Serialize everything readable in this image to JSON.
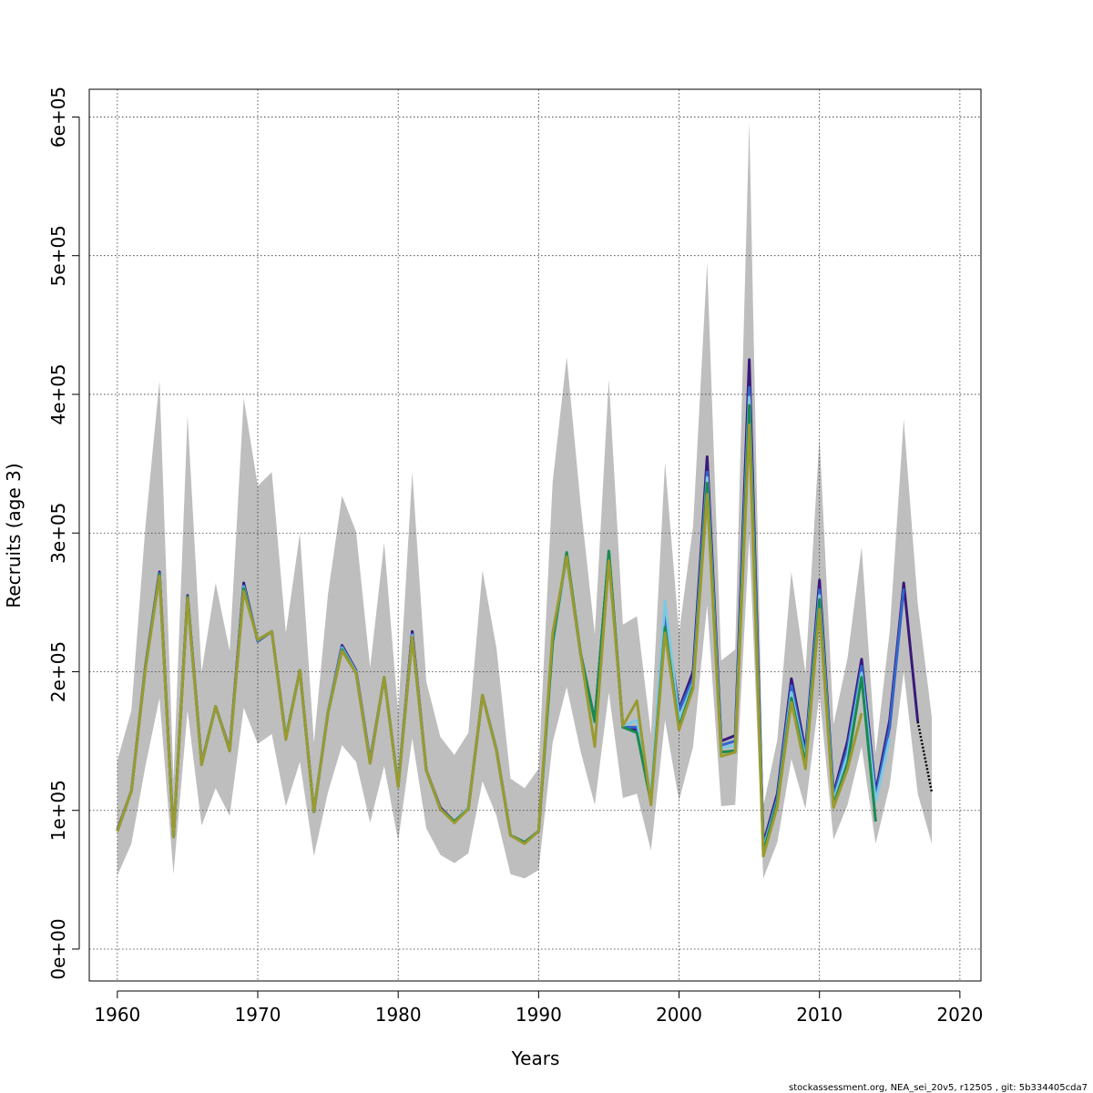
{
  "chart_data": {
    "type": "line",
    "xlabel": "Years",
    "ylabel": "Recruits (age 3)",
    "xlim": [
      1958,
      2021.5
    ],
    "ylim": [
      -23000,
      620000
    ],
    "xticks": [
      1960,
      1970,
      1980,
      1990,
      2000,
      2010,
      2020
    ],
    "yticks": [
      0,
      100000,
      200000,
      300000,
      400000,
      500000,
      600000
    ],
    "ytick_labels": [
      "0e+00",
      "1e+05",
      "2e+05",
      "3e+05",
      "4e+05",
      "5e+05",
      "6e+05"
    ],
    "grid": true,
    "footnote": "stockassessment.org, NEA_sei_20v5, r12505 , git: 5b334405cda7",
    "confidence_band": {
      "color": "#bebebe",
      "x": [
        1960,
        1961,
        1962,
        1963,
        1964,
        1965,
        1966,
        1967,
        1968,
        1969,
        1970,
        1971,
        1972,
        1973,
        1974,
        1975,
        1976,
        1977,
        1978,
        1979,
        1980,
        1981,
        1982,
        1983,
        1984,
        1985,
        1986,
        1987,
        1988,
        1989,
        1990,
        1991,
        1992,
        1993,
        1994,
        1995,
        1996,
        1997,
        1998,
        1999,
        2000,
        2001,
        2002,
        2003,
        2004,
        2005,
        2006,
        2007,
        2008,
        2009,
        2010,
        2011,
        2012,
        2013,
        2014,
        2015,
        2016,
        2017,
        2018
      ],
      "upper": [
        136000,
        172000,
        305000,
        410000,
        122000,
        385000,
        200000,
        264000,
        215000,
        397000,
        334000,
        344000,
        228000,
        300000,
        149000,
        256000,
        327000,
        301000,
        203000,
        293000,
        170000,
        344000,
        193000,
        153000,
        140000,
        156000,
        273000,
        217000,
        123000,
        116000,
        130000,
        337000,
        427000,
        320000,
        227000,
        411000,
        234000,
        240000,
        155000,
        351000,
        228000,
        305000,
        495000,
        208000,
        216000,
        597000,
        103000,
        151000,
        272000,
        199000,
        369000,
        162000,
        210000,
        290000,
        141000,
        229000,
        382000,
        249000,
        167000
      ],
      "lower": [
        53000,
        76000,
        132000,
        181000,
        54000,
        172000,
        89000,
        116000,
        96000,
        174000,
        148000,
        155000,
        103000,
        135000,
        67000,
        113000,
        147000,
        135000,
        91000,
        132000,
        78000,
        152000,
        87000,
        68000,
        62000,
        69000,
        121000,
        96000,
        54000,
        51000,
        57000,
        149000,
        189000,
        142000,
        104000,
        185000,
        109000,
        112000,
        71000,
        165000,
        107000,
        146000,
        248000,
        103000,
        104000,
        297000,
        51000,
        77000,
        137000,
        101000,
        184000,
        79000,
        104000,
        146000,
        76000,
        118000,
        200000,
        112000,
        76000
      ]
    },
    "series": [
      {
        "color": "#39197a",
        "x": [
          1960,
          1961,
          1962,
          1963,
          1964,
          1965,
          1966,
          1967,
          1968,
          1969,
          1970,
          1971,
          1972,
          1973,
          1974,
          1975,
          1976,
          1977,
          1978,
          1979,
          1980,
          1981,
          1982,
          1983,
          1984,
          1985,
          1986,
          1987,
          1988,
          1989,
          1990,
          1991,
          1992,
          1993,
          1994,
          1995,
          1996,
          1997,
          1998,
          1999,
          2000,
          2001,
          2002,
          2003,
          2004,
          2005,
          2006,
          2007,
          2008,
          2009,
          2010,
          2011,
          2012,
          2013,
          2014,
          2015,
          2016,
          2017
        ],
        "values": [
          86000,
          114000,
          204000,
          272000,
          81000,
          255000,
          134000,
          175000,
          144000,
          264000,
          222000,
          229000,
          152000,
          201000,
          99000,
          171000,
          219000,
          201000,
          136000,
          196000,
          118000,
          229000,
          129000,
          102000,
          92000,
          102000,
          183000,
          144000,
          82000,
          77000,
          85000,
          224000,
          284000,
          212000,
          165000,
          286000,
          160000,
          158000,
          106000,
          240000,
          173000,
          200000,
          355000,
          150000,
          154000,
          425000,
          76000,
          112000,
          195000,
          143000,
          266000,
          112000,
          150000,
          209000,
          113000,
          165000,
          264000,
          164000
        ]
      },
      {
        "color": "#3366cc",
        "x": [
          1960,
          1961,
          1962,
          1963,
          1964,
          1965,
          1966,
          1967,
          1968,
          1969,
          1970,
          1971,
          1972,
          1973,
          1974,
          1975,
          1976,
          1977,
          1978,
          1979,
          1980,
          1981,
          1982,
          1983,
          1984,
          1985,
          1986,
          1987,
          1988,
          1989,
          1990,
          1991,
          1992,
          1993,
          1994,
          1995,
          1996,
          1997,
          1998,
          1999,
          2000,
          2001,
          2002,
          2003,
          2004,
          2005,
          2006,
          2007,
          2008,
          2009,
          2010,
          2011,
          2012,
          2013,
          2014,
          2015,
          2016
        ],
        "values": [
          85000,
          114000,
          203000,
          271000,
          81000,
          254000,
          134000,
          175000,
          143000,
          262000,
          222000,
          229000,
          152000,
          201000,
          99000,
          171000,
          218000,
          200000,
          135000,
          196000,
          118000,
          227000,
          129000,
          101000,
          92000,
          102000,
          183000,
          144000,
          82000,
          77000,
          85000,
          222000,
          283000,
          212000,
          164000,
          285000,
          160000,
          160000,
          107000,
          238000,
          172000,
          195000,
          344000,
          147000,
          150000,
          405000,
          74000,
          109000,
          190000,
          140000,
          259000,
          110000,
          145000,
          204000,
          110000,
          160000,
          260000
        ]
      },
      {
        "color": "#7ec8e3",
        "x": [
          1960,
          1961,
          1962,
          1963,
          1964,
          1965,
          1966,
          1967,
          1968,
          1969,
          1970,
          1971,
          1972,
          1973,
          1974,
          1975,
          1976,
          1977,
          1978,
          1979,
          1980,
          1981,
          1982,
          1983,
          1984,
          1985,
          1986,
          1987,
          1988,
          1989,
          1990,
          1991,
          1992,
          1993,
          1994,
          1995,
          1996,
          1997,
          1998,
          1999,
          2000,
          2001,
          2002,
          2003,
          2004,
          2005,
          2006,
          2007,
          2008,
          2009,
          2010,
          2011,
          2012,
          2013,
          2014,
          2015
        ],
        "values": [
          85000,
          114000,
          203000,
          270000,
          81000,
          254000,
          133000,
          175000,
          143000,
          261000,
          223000,
          229000,
          152000,
          201000,
          99000,
          171000,
          217000,
          200000,
          135000,
          196000,
          118000,
          226000,
          129000,
          101000,
          92000,
          102000,
          183000,
          144000,
          82000,
          77000,
          85000,
          221000,
          283000,
          213000,
          163000,
          284000,
          161000,
          165000,
          110000,
          251000,
          165000,
          192000,
          340000,
          145000,
          147000,
          398000,
          72000,
          107000,
          185000,
          137000,
          255000,
          107000,
          140000,
          199000,
          106000,
          152000
        ]
      },
      {
        "color": "#1a8a50",
        "x": [
          1960,
          1961,
          1962,
          1963,
          1964,
          1965,
          1966,
          1967,
          1968,
          1969,
          1970,
          1971,
          1972,
          1973,
          1974,
          1975,
          1976,
          1977,
          1978,
          1979,
          1980,
          1981,
          1982,
          1983,
          1984,
          1985,
          1986,
          1987,
          1988,
          1989,
          1990,
          1991,
          1992,
          1993,
          1994,
          1995,
          1996,
          1997,
          1998,
          1999,
          2000,
          2001,
          2002,
          2003,
          2004,
          2005,
          2006,
          2007,
          2008,
          2009,
          2010,
          2011,
          2012,
          2013,
          2014
        ],
        "values": [
          85000,
          114000,
          203000,
          270000,
          81000,
          254000,
          133000,
          175000,
          143000,
          260000,
          223000,
          229000,
          152000,
          201000,
          99000,
          170000,
          216000,
          199000,
          134000,
          196000,
          117000,
          225000,
          129000,
          101000,
          92000,
          101000,
          183000,
          143000,
          82000,
          77000,
          85000,
          221000,
          286000,
          213000,
          164000,
          287000,
          160000,
          156000,
          106000,
          232000,
          160000,
          190000,
          336000,
          142000,
          143000,
          392000,
          70000,
          106000,
          181000,
          134000,
          252000,
          104000,
          134000,
          196000,
          92000
        ]
      },
      {
        "color": "#9a9a30",
        "x": [
          1960,
          1961,
          1962,
          1963,
          1964,
          1965,
          1966,
          1967,
          1968,
          1969,
          1970,
          1971,
          1972,
          1973,
          1974,
          1975,
          1976,
          1977,
          1978,
          1979,
          1980,
          1981,
          1982,
          1983,
          1984,
          1985,
          1986,
          1987,
          1988,
          1989,
          1990,
          1991,
          1992,
          1993,
          1994,
          1995,
          1996,
          1997,
          1998,
          1999,
          2000,
          2001,
          2002,
          2003,
          2004,
          2005,
          2006,
          2007,
          2008,
          2009,
          2010,
          2011,
          2012,
          2013
        ],
        "values": [
          85000,
          114000,
          202000,
          269000,
          81000,
          253000,
          133000,
          175000,
          143000,
          258000,
          223000,
          229000,
          151000,
          201000,
          99000,
          170000,
          215000,
          199000,
          134000,
          196000,
          117000,
          225000,
          129000,
          101000,
          91000,
          101000,
          183000,
          143000,
          82000,
          76000,
          85000,
          228000,
          283000,
          212000,
          146000,
          280000,
          161000,
          179000,
          104000,
          228000,
          158000,
          188000,
          328000,
          139000,
          142000,
          378000,
          67000,
          103000,
          178000,
          130000,
          245000,
          102000,
          130000,
          170000
        ]
      }
    ],
    "forecast_series": {
      "color": "#000000",
      "x": [
        2017,
        2018
      ],
      "values": [
        164000,
        113000
      ]
    }
  }
}
